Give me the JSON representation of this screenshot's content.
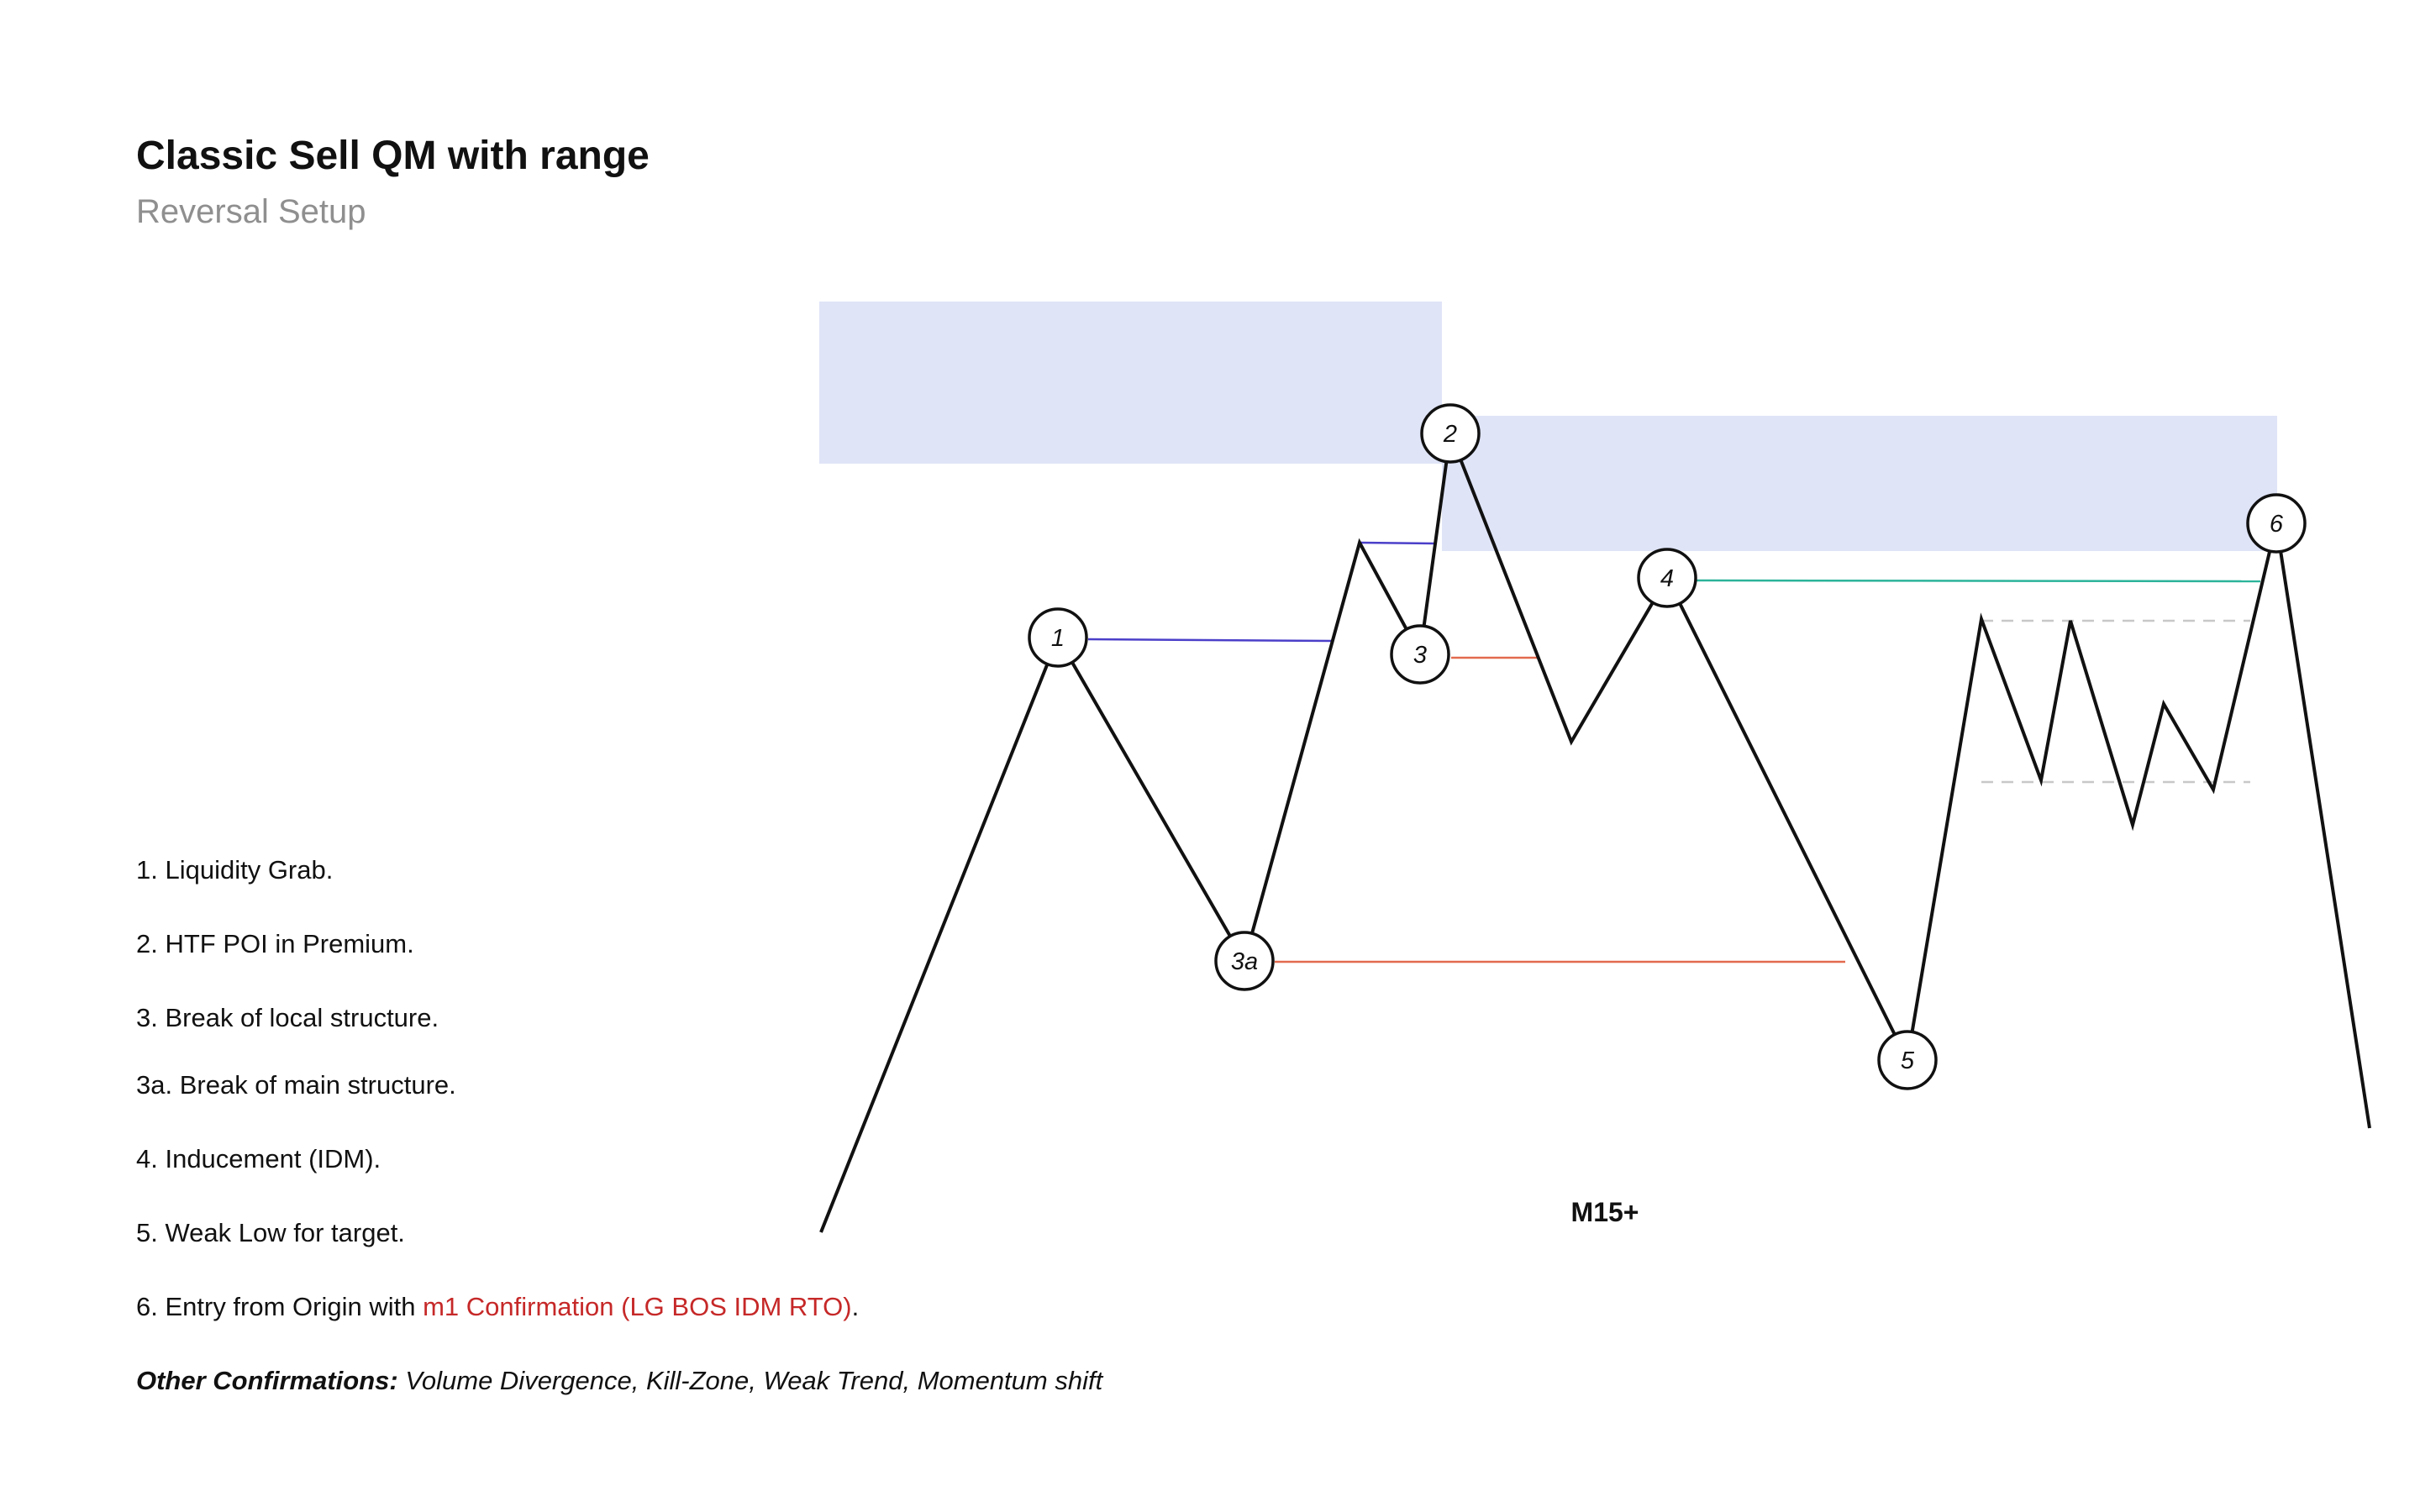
{
  "header": {
    "title": "Classic Sell QM with range",
    "subtitle": "Reversal Setup"
  },
  "legend": {
    "items": [
      "1. Liquidity Grab.",
      "2. HTF POI in Premium.",
      "3. Break of local structure.",
      "3a. Break of main structure.",
      "4. Inducement (IDM).",
      "5. Weak Low for target."
    ],
    "entry": {
      "prefix": "6. Entry from Origin with ",
      "highlight": "m1 Confirmation (LG BOS IDM RTO)",
      "suffix": "."
    },
    "confirmations": {
      "label": "Other Confirmations:",
      "text": " Volume Divergence, Kill-Zone, Weak Trend, Momentum shift"
    }
  },
  "diagram": {
    "timeframe": "M15+",
    "points": {
      "p1": "1",
      "p2": "2",
      "p3": "3",
      "p3a": "3a",
      "p4": "4",
      "p5": "5",
      "p6": "6"
    }
  },
  "colors": {
    "zone_fill": "#dfe4f7",
    "liquidity_line": "#4b3fc9",
    "break_line": "#e26a4e",
    "inducement_line": "#2bb39a",
    "range_dash": "#c8c8c8",
    "price_line": "#111111",
    "accent_text": "#c62828"
  }
}
